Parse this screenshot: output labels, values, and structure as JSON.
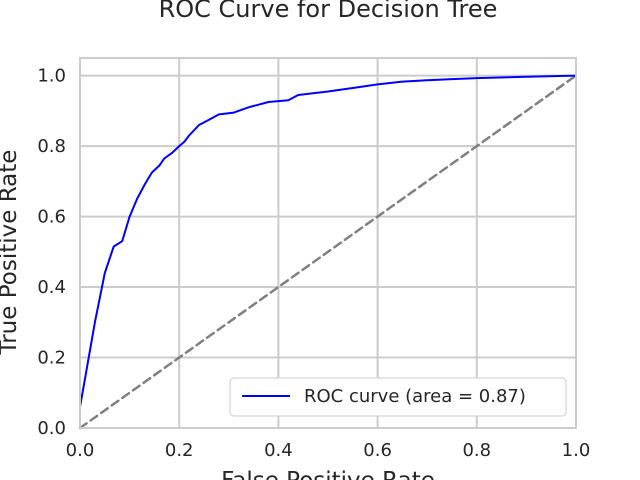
{
  "chart_data": {
    "type": "line",
    "title": "ROC Curve for Decision Tree",
    "xlabel": "False Positive Rate",
    "ylabel": "True Positive Rate",
    "xlim": [
      0.0,
      1.0
    ],
    "ylim": [
      0.0,
      1.05
    ],
    "xticks": [
      0.0,
      0.2,
      0.4,
      0.6,
      0.8,
      1.0
    ],
    "yticks": [
      0.0,
      0.2,
      0.4,
      0.6,
      0.8,
      1.0
    ],
    "xtick_labels": [
      "0.0",
      "0.2",
      "0.4",
      "0.6",
      "0.8",
      "1.0"
    ],
    "ytick_labels": [
      "0.0",
      "0.2",
      "0.4",
      "0.6",
      "0.8",
      "1.0"
    ],
    "grid": true,
    "legend_position": "lower-right",
    "series": [
      {
        "name": "ROC curve (area = 0.87)",
        "color": "#0000ff",
        "style": "solid",
        "x": [
          0.0,
          0.01,
          0.03,
          0.05,
          0.068,
          0.085,
          0.1,
          0.115,
          0.13,
          0.145,
          0.16,
          0.17,
          0.185,
          0.2,
          0.21,
          0.22,
          0.24,
          0.26,
          0.28,
          0.31,
          0.34,
          0.38,
          0.42,
          0.44,
          0.5,
          0.55,
          0.6,
          0.65,
          0.7,
          0.75,
          0.8,
          0.9,
          1.0
        ],
        "y": [
          0.06,
          0.14,
          0.3,
          0.44,
          0.515,
          0.53,
          0.6,
          0.65,
          0.69,
          0.725,
          0.745,
          0.765,
          0.78,
          0.8,
          0.812,
          0.83,
          0.86,
          0.875,
          0.89,
          0.895,
          0.91,
          0.925,
          0.93,
          0.945,
          0.955,
          0.965,
          0.975,
          0.983,
          0.987,
          0.99,
          0.993,
          0.997,
          1.0
        ]
      },
      {
        "name": "",
        "color": "#808080",
        "style": "dashed",
        "x": [
          0.0,
          1.0
        ],
        "y": [
          0.0,
          1.0
        ]
      }
    ]
  }
}
